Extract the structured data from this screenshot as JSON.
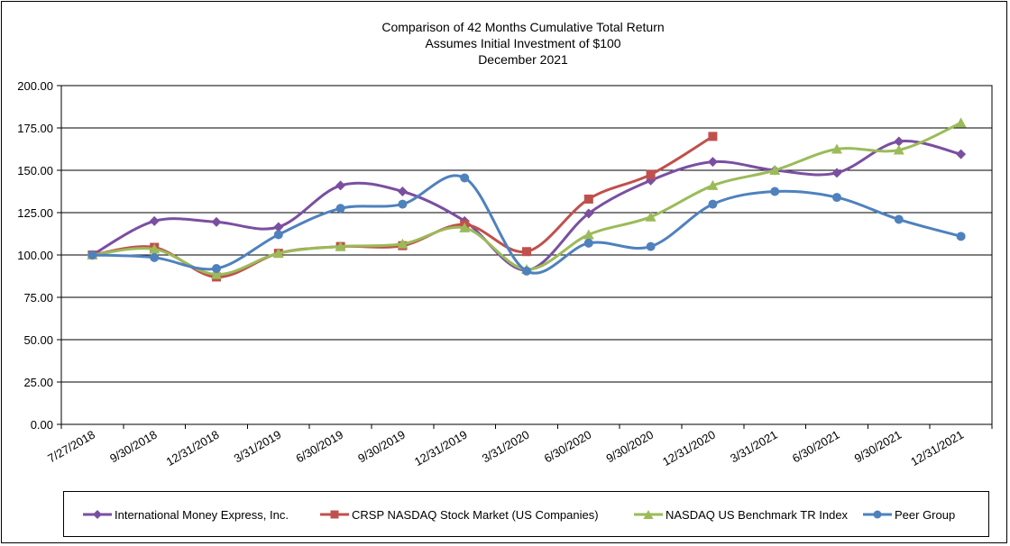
{
  "chart_data": {
    "type": "line",
    "title": "Comparison of 42 Months Cumulative Total Return",
    "subtitle_lines": [
      "Assumes Initial Investment of $100",
      "December 2021"
    ],
    "xlabel": "",
    "ylabel": "",
    "ylim": [
      0,
      200
    ],
    "yticks": [
      "0.00",
      "25.00",
      "50.00",
      "75.00",
      "100.00",
      "125.00",
      "150.00",
      "175.00",
      "200.00"
    ],
    "ytick_values": [
      0,
      25,
      50,
      75,
      100,
      125,
      150,
      175,
      200
    ],
    "categories": [
      "7/27/2018",
      "9/30/2018",
      "12/31/2018",
      "3/31/2019",
      "6/30/2019",
      "9/30/2019",
      "12/31/2019",
      "3/31/2020",
      "6/30/2020",
      "9/30/2020",
      "12/31/2020",
      "3/31/2021",
      "6/30/2021",
      "9/30/2021",
      "12/31/2021"
    ],
    "grid": true,
    "legend_position": "bottom",
    "series": [
      {
        "name": "International Money Express, Inc.",
        "color": "#7a4fa0",
        "marker": "diamond",
        "values": [
          100,
          120,
          119.5,
          116.5,
          141,
          137.5,
          120,
          91,
          124.5,
          144,
          155,
          150,
          148.5,
          167,
          159.5
        ]
      },
      {
        "name": "CRSP NASDAQ Stock Market (US Companies)",
        "color": "#c0504d",
        "marker": "square",
        "values": [
          100,
          104.5,
          87,
          101,
          105,
          105.5,
          118,
          102,
          133,
          147.5,
          170,
          null,
          null,
          null,
          null
        ]
      },
      {
        "name": "NASDAQ US Benchmark TR Index",
        "color": "#9bbb59",
        "marker": "triangle",
        "values": [
          100,
          103.5,
          88.5,
          101,
          105,
          106.5,
          116,
          91.5,
          112,
          122.5,
          141,
          150,
          162.5,
          162,
          178
        ]
      },
      {
        "name": "Peer Group",
        "color": "#4f81bd",
        "marker": "circle",
        "values": [
          100,
          98.5,
          92,
          112,
          127.5,
          130,
          145.5,
          90.5,
          107,
          105,
          130,
          137.5,
          134,
          121,
          111
        ]
      }
    ]
  }
}
